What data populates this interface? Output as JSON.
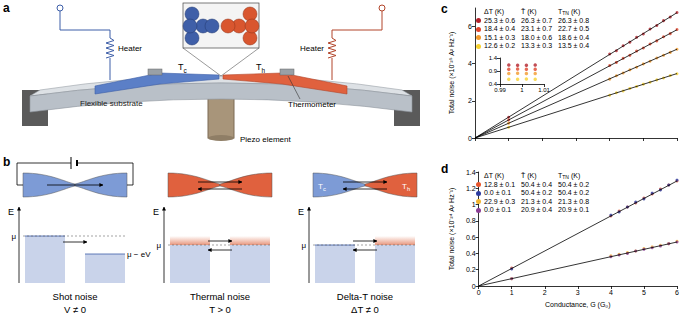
{
  "diagram_a": {
    "label": "a",
    "heaters": [
      "Heater",
      "Heater"
    ],
    "substrate": "Flexible substrate",
    "piezo": "Piezo element",
    "thermometer": "Thermometer",
    "cold": {
      "base": "T",
      "sub": "c"
    },
    "hot": {
      "base": "T",
      "sub": "h"
    }
  },
  "diagram_b": {
    "label": "b",
    "energy_axis": "E",
    "mu": "μ",
    "mu_shifted": "μ − eV",
    "cold": {
      "base": "T",
      "sub": "c"
    },
    "hot": {
      "base": "T",
      "sub": "h"
    },
    "panels": [
      {
        "title": "Shot noise",
        "condition": "V ≠ 0"
      },
      {
        "title": "Thermal noise",
        "condition": "T > 0"
      },
      {
        "title": "Delta-T noise",
        "condition": "ΔT ≠ 0"
      }
    ]
  },
  "chart_data": [
    {
      "label": "c",
      "type": "scatter",
      "marker": "circle",
      "grid": false,
      "tick_labels": "y",
      "y_label": "Total noise (×10⁻²⁵ A² Hz⁻¹)",
      "xlim": [
        0,
        6
      ],
      "xticks": [
        0,
        1,
        2,
        3,
        4,
        5,
        6
      ],
      "ylim": [
        0,
        7
      ],
      "yticks": [
        0,
        2,
        4,
        6
      ],
      "table": {
        "header": [
          "ΔT (K)",
          "T̄ (K)",
          {
            "base": "T",
            "sub": "TN",
            "rest": " (K)"
          }
        ],
        "rows": [
          {
            "color": "#b3202a",
            "cells": [
              "25.3 ± 0.6",
              "26.3 ± 0.7",
              "26.3 ± 0.8"
            ]
          },
          {
            "color": "#e0442b",
            "cells": [
              "18.4 ± 0.4",
              "23.1 ± 0.7",
              "22.7 ± 0.5"
            ]
          },
          {
            "color": "#f39a2c",
            "cells": [
              "15.1 ± 0.3",
              "18.0 ± 0.6",
              "18.6 ± 0.4"
            ]
          },
          {
            "color": "#f7d22f",
            "cells": [
              "12.6 ± 0.2",
              "13.3 ± 0.3",
              "13.5 ± 0.4"
            ]
          }
        ]
      },
      "series": [
        {
          "color": "#b3202a",
          "x": [
            1.0,
            4.0,
            4.2,
            4.4,
            4.6,
            4.8,
            5.0,
            5.2,
            5.4,
            5.6,
            5.8,
            6.0
          ],
          "values": [
            1.12,
            4.52,
            4.7,
            4.97,
            5.16,
            5.42,
            5.6,
            5.87,
            6.06,
            6.32,
            6.51,
            6.76
          ]
        },
        {
          "color": "#e0442b",
          "x": [
            1.0,
            4.0,
            4.2,
            4.4,
            4.6,
            4.8,
            5.0,
            5.2,
            5.4,
            5.6,
            5.8,
            6.0
          ],
          "values": [
            0.97,
            3.9,
            4.07,
            4.29,
            4.45,
            4.68,
            4.85,
            5.06,
            5.23,
            5.45,
            5.62,
            5.84
          ]
        },
        {
          "color": "#f39a2c",
          "x": [
            1.0,
            4.0,
            4.2,
            4.4,
            4.6,
            4.8,
            5.0,
            5.2,
            5.4,
            5.6,
            5.8,
            6.0
          ],
          "values": [
            0.8,
            3.17,
            3.35,
            3.5,
            3.67,
            3.81,
            3.99,
            4.13,
            4.31,
            4.45,
            4.61,
            4.78
          ]
        },
        {
          "color": "#f7d22f",
          "x": [
            1.0,
            4.0,
            4.2,
            4.4,
            4.6,
            4.8,
            5.0,
            5.2,
            5.4,
            5.6,
            5.8,
            6.0
          ],
          "values": [
            0.58,
            2.3,
            2.44,
            2.53,
            2.67,
            2.77,
            2.9,
            3.0,
            3.13,
            3.23,
            3.36,
            3.46
          ]
        },
        {
          "type": "line",
          "color": "#000000",
          "x": [
            0,
            6
          ],
          "values": [
            0,
            6.75
          ]
        },
        {
          "type": "line",
          "color": "#000000",
          "x": [
            0,
            6
          ],
          "values": [
            0,
            5.83
          ]
        },
        {
          "type": "line",
          "color": "#000000",
          "x": [
            0,
            6
          ],
          "values": [
            0,
            4.78
          ]
        },
        {
          "type": "line",
          "color": "#000000",
          "x": [
            0,
            6
          ],
          "values": [
            0,
            3.47
          ]
        }
      ]
    },
    {
      "type": "scatter",
      "marker": "circle",
      "grid": false,
      "xlim": [
        0.99,
        1.01
      ],
      "xticks": [
        0.99,
        1,
        1.01
      ],
      "ylim": [
        0.4,
        1.4
      ],
      "yticks": [
        0.4,
        0.9,
        1.4
      ],
      "series": [
        {
          "color": "#b3202a",
          "x": [
            0.994,
            0.998,
            1.002,
            1.006
          ],
          "values": [
            1.13,
            1.12,
            1.12,
            1.13
          ]
        },
        {
          "color": "#e0442b",
          "x": [
            0.994,
            0.998,
            1.002,
            1.006
          ],
          "values": [
            0.97,
            0.98,
            0.97,
            0.97
          ]
        },
        {
          "color": "#f39a2c",
          "x": [
            0.994,
            0.998,
            1.002,
            1.006
          ],
          "values": [
            0.8,
            0.81,
            0.8,
            0.8
          ]
        },
        {
          "color": "#f7d22f",
          "x": [
            0.994,
            0.998,
            1.002,
            1.006
          ],
          "values": [
            0.58,
            0.58,
            0.59,
            0.58
          ]
        }
      ]
    },
    {
      "label": "d",
      "type": "scatter",
      "marker": "circle",
      "grid": false,
      "x_label": "Conductance, G (G₀)",
      "y_label": "Total noise (×10⁻²⁴ A² Hz⁻¹)",
      "xlim": [
        0,
        6
      ],
      "xticks": [
        0,
        1,
        2,
        3,
        4,
        5,
        6
      ],
      "ylim": [
        0,
        1.4
      ],
      "yticks": [
        0,
        0.2,
        0.4,
        0.6,
        0.8,
        1.0,
        1.2,
        1.4
      ],
      "table": {
        "header": [
          "ΔT (K)",
          "T̄ (K)",
          {
            "base": "T",
            "sub": "TN",
            "rest": " (K)"
          }
        ],
        "rows": [
          {
            "color": "#e8552b",
            "cells": [
              "12.8 ± 0.1",
              "50.4 ± 0.4",
              "50.4 ± 0.2"
            ]
          },
          {
            "color": "#2b3a9f",
            "cells": [
              "0.0 ± 0.1",
              "50.4 ± 0.2",
              "50.4 ± 0.2"
            ]
          },
          {
            "color": "#f2b52e",
            "cells": [
              "22.9 ± 0.3",
              "21.3 ± 0.4",
              "21.3 ± 0.8"
            ]
          },
          {
            "color": "#8a3d94",
            "cells": [
              "0.0 ± 0.1",
              "20.9 ± 0.4",
              "20.9 ± 0.1"
            ]
          }
        ]
      },
      "series": [
        {
          "color": "#e8552b",
          "x": [
            1,
            4,
            4.25,
            4.5,
            4.75,
            5,
            5.25,
            5.5,
            5.75,
            6
          ],
          "values": [
            0.22,
            0.86,
            0.92,
            0.97,
            1.02,
            1.08,
            1.13,
            1.19,
            1.24,
            1.29
          ]
        },
        {
          "color": "#2b3a9f",
          "x": [
            1,
            4,
            4.25,
            4.5,
            4.75,
            5,
            5.25,
            5.5,
            5.75,
            6
          ],
          "values": [
            0.21,
            0.87,
            0.91,
            0.97,
            1.03,
            1.07,
            1.14,
            1.18,
            1.24,
            1.3
          ]
        },
        {
          "color": "#f2b52e",
          "x": [
            1,
            4,
            4.25,
            4.5,
            4.75,
            5,
            5.25,
            5.5,
            5.75,
            6
          ],
          "values": [
            0.09,
            0.37,
            0.39,
            0.41,
            0.43,
            0.46,
            0.48,
            0.5,
            0.52,
            0.55
          ]
        },
        {
          "color": "#8a3d94",
          "x": [
            1,
            4,
            4.25,
            4.5,
            4.75,
            5,
            5.25,
            5.5,
            5.75,
            6
          ],
          "values": [
            0.09,
            0.36,
            0.38,
            0.4,
            0.43,
            0.45,
            0.47,
            0.49,
            0.52,
            0.54
          ]
        },
        {
          "type": "line",
          "color": "#000000",
          "x": [
            0,
            6
          ],
          "values": [
            0,
            1.29
          ]
        },
        {
          "type": "line",
          "color": "#000000",
          "x": [
            0,
            6
          ],
          "values": [
            0,
            0.54
          ]
        }
      ]
    }
  ]
}
